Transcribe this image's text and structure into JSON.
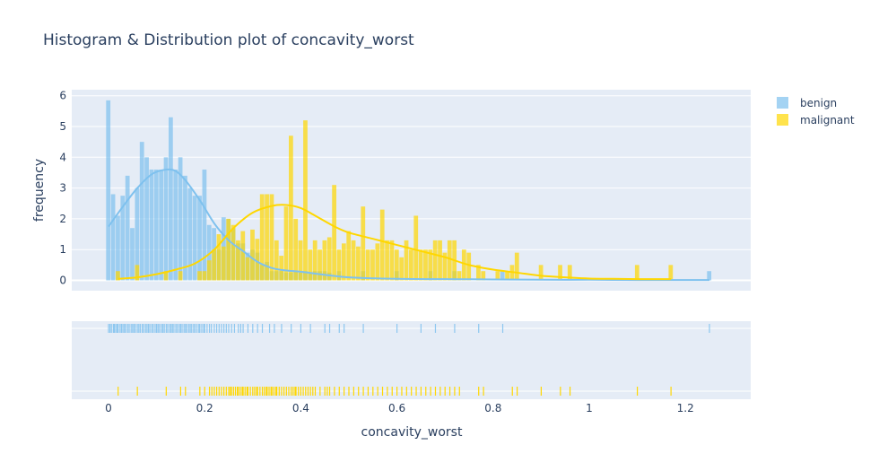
{
  "chart_data": {
    "type": "histogram",
    "title": "Histogram & Distribution plot of concavity_worst",
    "xlabel": "concavity_worst",
    "ylabel": "frequency",
    "xlim": [
      -0.06,
      1.32
    ],
    "ylim": [
      -0.3,
      6.2
    ],
    "x_ticks": [
      "0",
      "0.2",
      "0.4",
      "0.6",
      "0.8",
      "1",
      "1.2"
    ],
    "x_tick_values": [
      0,
      0.2,
      0.4,
      0.6,
      0.8,
      1.0,
      1.2
    ],
    "y_ticks": [
      "0",
      "1",
      "2",
      "3",
      "4",
      "5",
      "6"
    ],
    "y_tick_values": [
      0,
      1,
      2,
      3,
      4,
      5,
      6
    ],
    "bin_width": 0.01,
    "legend_position": "top-right",
    "series": [
      {
        "name": "benign",
        "color": "#7ec1ee",
        "bar_opacity": 0.7,
        "bins": [
          {
            "x": 0.0,
            "y": 5.85
          },
          {
            "x": 0.01,
            "y": 2.8
          },
          {
            "x": 0.02,
            "y": 2.1
          },
          {
            "x": 0.03,
            "y": 2.75
          },
          {
            "x": 0.04,
            "y": 3.4
          },
          {
            "x": 0.05,
            "y": 1.7
          },
          {
            "x": 0.06,
            "y": 3.0
          },
          {
            "x": 0.07,
            "y": 4.5
          },
          {
            "x": 0.08,
            "y": 4.0
          },
          {
            "x": 0.09,
            "y": 3.6
          },
          {
            "x": 0.1,
            "y": 3.6
          },
          {
            "x": 0.11,
            "y": 3.6
          },
          {
            "x": 0.12,
            "y": 4.0
          },
          {
            "x": 0.13,
            "y": 5.3
          },
          {
            "x": 0.14,
            "y": 3.6
          },
          {
            "x": 0.15,
            "y": 4.0
          },
          {
            "x": 0.16,
            "y": 3.4
          },
          {
            "x": 0.17,
            "y": 3.0
          },
          {
            "x": 0.18,
            "y": 2.75
          },
          {
            "x": 0.19,
            "y": 2.75
          },
          {
            "x": 0.2,
            "y": 3.6
          },
          {
            "x": 0.21,
            "y": 1.8
          },
          {
            "x": 0.22,
            "y": 1.7
          },
          {
            "x": 0.23,
            "y": 1.0
          },
          {
            "x": 0.24,
            "y": 2.05
          },
          {
            "x": 0.25,
            "y": 2.0
          },
          {
            "x": 0.26,
            "y": 1.7
          },
          {
            "x": 0.27,
            "y": 1.2
          },
          {
            "x": 0.28,
            "y": 1.2
          },
          {
            "x": 0.29,
            "y": 0.9
          },
          {
            "x": 0.3,
            "y": 1.0
          },
          {
            "x": 0.31,
            "y": 0.9
          },
          {
            "x": 0.32,
            "y": 0.5
          },
          {
            "x": 0.33,
            "y": 0.6
          },
          {
            "x": 0.34,
            "y": 0.3
          },
          {
            "x": 0.35,
            "y": 0.3
          },
          {
            "x": 0.36,
            "y": 0.3
          },
          {
            "x": 0.37,
            "y": 0.25
          },
          {
            "x": 0.38,
            "y": 0.25
          },
          {
            "x": 0.39,
            "y": 0.3
          },
          {
            "x": 0.4,
            "y": 0.25
          },
          {
            "x": 0.41,
            "y": 0.3
          },
          {
            "x": 0.42,
            "y": 0.25
          },
          {
            "x": 0.43,
            "y": 0.3
          },
          {
            "x": 0.44,
            "y": 0.3
          },
          {
            "x": 0.45,
            "y": 0.3
          },
          {
            "x": 0.46,
            "y": 0.25
          },
          {
            "x": 0.48,
            "y": 0.3
          },
          {
            "x": 0.53,
            "y": 0.3
          },
          {
            "x": 0.6,
            "y": 0.3
          },
          {
            "x": 0.67,
            "y": 0.3
          },
          {
            "x": 0.72,
            "y": 0.3
          },
          {
            "x": 0.82,
            "y": 0.3
          },
          {
            "x": 1.25,
            "y": 0.3
          }
        ],
        "kde": {
          "x": [
            0.0,
            0.03,
            0.06,
            0.09,
            0.12,
            0.14,
            0.16,
            0.19,
            0.22,
            0.25,
            0.28,
            0.31,
            0.34,
            0.37,
            0.4,
            0.45,
            0.5,
            0.6,
            0.7,
            0.8,
            0.9,
            1.0,
            1.1,
            1.2,
            1.25
          ],
          "y": [
            1.75,
            2.4,
            3.0,
            3.45,
            3.6,
            3.55,
            3.25,
            2.6,
            1.85,
            1.3,
            0.95,
            0.6,
            0.4,
            0.32,
            0.28,
            0.18,
            0.1,
            0.05,
            0.04,
            0.03,
            0.02,
            0.02,
            0.01,
            0.01,
            0.01
          ]
        },
        "rug": [
          0.0,
          0.003,
          0.006,
          0.01,
          0.012,
          0.015,
          0.018,
          0.02,
          0.024,
          0.027,
          0.03,
          0.033,
          0.036,
          0.04,
          0.043,
          0.047,
          0.05,
          0.053,
          0.056,
          0.06,
          0.063,
          0.066,
          0.07,
          0.073,
          0.077,
          0.08,
          0.083,
          0.086,
          0.09,
          0.093,
          0.097,
          0.1,
          0.103,
          0.106,
          0.11,
          0.113,
          0.116,
          0.12,
          0.123,
          0.127,
          0.13,
          0.133,
          0.136,
          0.14,
          0.143,
          0.147,
          0.15,
          0.153,
          0.157,
          0.16,
          0.163,
          0.167,
          0.17,
          0.173,
          0.177,
          0.18,
          0.184,
          0.188,
          0.19,
          0.194,
          0.198,
          0.2,
          0.205,
          0.21,
          0.214,
          0.22,
          0.225,
          0.23,
          0.235,
          0.24,
          0.245,
          0.25,
          0.256,
          0.262,
          0.27,
          0.275,
          0.28,
          0.29,
          0.3,
          0.31,
          0.32,
          0.335,
          0.345,
          0.36,
          0.38,
          0.4,
          0.42,
          0.45,
          0.46,
          0.48,
          0.49,
          0.53,
          0.6,
          0.65,
          0.68,
          0.72,
          0.77,
          0.82,
          1.25
        ]
      },
      {
        "name": "malignant",
        "color": "#ffd700",
        "bar_opacity": 0.7,
        "bins": [
          {
            "x": 0.02,
            "y": 0.3
          },
          {
            "x": 0.06,
            "y": 0.5
          },
          {
            "x": 0.12,
            "y": 0.3
          },
          {
            "x": 0.15,
            "y": 0.3
          },
          {
            "x": 0.19,
            "y": 0.3
          },
          {
            "x": 0.2,
            "y": 0.3
          },
          {
            "x": 0.21,
            "y": 0.65
          },
          {
            "x": 0.22,
            "y": 1.0
          },
          {
            "x": 0.23,
            "y": 1.5
          },
          {
            "x": 0.24,
            "y": 1.1
          },
          {
            "x": 0.25,
            "y": 2.0
          },
          {
            "x": 0.26,
            "y": 1.8
          },
          {
            "x": 0.27,
            "y": 1.3
          },
          {
            "x": 0.28,
            "y": 1.6
          },
          {
            "x": 0.29,
            "y": 0.75
          },
          {
            "x": 0.3,
            "y": 1.65
          },
          {
            "x": 0.31,
            "y": 1.35
          },
          {
            "x": 0.32,
            "y": 2.8
          },
          {
            "x": 0.33,
            "y": 2.8
          },
          {
            "x": 0.34,
            "y": 2.8
          },
          {
            "x": 0.35,
            "y": 1.3
          },
          {
            "x": 0.36,
            "y": 0.8
          },
          {
            "x": 0.37,
            "y": 2.4
          },
          {
            "x": 0.38,
            "y": 4.7
          },
          {
            "x": 0.39,
            "y": 2.0
          },
          {
            "x": 0.4,
            "y": 1.3
          },
          {
            "x": 0.41,
            "y": 5.2
          },
          {
            "x": 0.42,
            "y": 1.0
          },
          {
            "x": 0.43,
            "y": 1.3
          },
          {
            "x": 0.44,
            "y": 1.0
          },
          {
            "x": 0.45,
            "y": 1.3
          },
          {
            "x": 0.46,
            "y": 1.4
          },
          {
            "x": 0.47,
            "y": 3.1
          },
          {
            "x": 0.48,
            "y": 1.0
          },
          {
            "x": 0.49,
            "y": 1.2
          },
          {
            "x": 0.5,
            "y": 1.6
          },
          {
            "x": 0.51,
            "y": 1.3
          },
          {
            "x": 0.52,
            "y": 1.1
          },
          {
            "x": 0.53,
            "y": 2.4
          },
          {
            "x": 0.54,
            "y": 1.0
          },
          {
            "x": 0.55,
            "y": 1.0
          },
          {
            "x": 0.56,
            "y": 1.2
          },
          {
            "x": 0.57,
            "y": 2.3
          },
          {
            "x": 0.58,
            "y": 1.3
          },
          {
            "x": 0.59,
            "y": 1.3
          },
          {
            "x": 0.6,
            "y": 1.0
          },
          {
            "x": 0.61,
            "y": 0.75
          },
          {
            "x": 0.62,
            "y": 1.3
          },
          {
            "x": 0.63,
            "y": 1.0
          },
          {
            "x": 0.64,
            "y": 2.1
          },
          {
            "x": 0.65,
            "y": 1.0
          },
          {
            "x": 0.66,
            "y": 1.0
          },
          {
            "x": 0.67,
            "y": 1.0
          },
          {
            "x": 0.68,
            "y": 1.3
          },
          {
            "x": 0.69,
            "y": 1.3
          },
          {
            "x": 0.7,
            "y": 0.9
          },
          {
            "x": 0.71,
            "y": 1.3
          },
          {
            "x": 0.72,
            "y": 1.3
          },
          {
            "x": 0.73,
            "y": 0.3
          },
          {
            "x": 0.74,
            "y": 1.0
          },
          {
            "x": 0.75,
            "y": 0.9
          },
          {
            "x": 0.77,
            "y": 0.5
          },
          {
            "x": 0.78,
            "y": 0.3
          },
          {
            "x": 0.81,
            "y": 0.3
          },
          {
            "x": 0.83,
            "y": 0.3
          },
          {
            "x": 0.84,
            "y": 0.5
          },
          {
            "x": 0.85,
            "y": 0.9
          },
          {
            "x": 0.9,
            "y": 0.5
          },
          {
            "x": 0.94,
            "y": 0.5
          },
          {
            "x": 0.96,
            "y": 0.5
          },
          {
            "x": 1.1,
            "y": 0.5
          },
          {
            "x": 1.17,
            "y": 0.5
          }
        ],
        "kde": {
          "x": [
            0.02,
            0.06,
            0.1,
            0.14,
            0.18,
            0.22,
            0.26,
            0.3,
            0.34,
            0.37,
            0.4,
            0.43,
            0.47,
            0.5,
            0.55,
            0.6,
            0.65,
            0.7,
            0.75,
            0.8,
            0.85,
            0.9,
            0.95,
            1.0,
            1.05,
            1.1,
            1.17
          ],
          "y": [
            0.05,
            0.1,
            0.2,
            0.35,
            0.55,
            1.0,
            1.7,
            2.2,
            2.42,
            2.45,
            2.35,
            2.1,
            1.75,
            1.55,
            1.35,
            1.15,
            0.95,
            0.75,
            0.5,
            0.35,
            0.25,
            0.15,
            0.1,
            0.06,
            0.05,
            0.04,
            0.04
          ]
        },
        "rug": [
          0.02,
          0.06,
          0.12,
          0.15,
          0.16,
          0.19,
          0.2,
          0.21,
          0.215,
          0.22,
          0.225,
          0.23,
          0.235,
          0.24,
          0.245,
          0.25,
          0.253,
          0.256,
          0.26,
          0.264,
          0.268,
          0.27,
          0.274,
          0.278,
          0.28,
          0.284,
          0.288,
          0.29,
          0.295,
          0.3,
          0.304,
          0.308,
          0.31,
          0.315,
          0.32,
          0.324,
          0.328,
          0.33,
          0.334,
          0.338,
          0.34,
          0.344,
          0.348,
          0.35,
          0.355,
          0.36,
          0.365,
          0.37,
          0.375,
          0.38,
          0.384,
          0.388,
          0.39,
          0.395,
          0.4,
          0.405,
          0.41,
          0.415,
          0.42,
          0.425,
          0.43,
          0.44,
          0.45,
          0.455,
          0.46,
          0.47,
          0.48,
          0.49,
          0.5,
          0.51,
          0.52,
          0.53,
          0.54,
          0.55,
          0.56,
          0.57,
          0.58,
          0.59,
          0.6,
          0.61,
          0.62,
          0.63,
          0.64,
          0.65,
          0.66,
          0.67,
          0.68,
          0.69,
          0.7,
          0.71,
          0.72,
          0.73,
          0.77,
          0.78,
          0.84,
          0.85,
          0.9,
          0.94,
          0.96,
          1.1,
          1.17
        ]
      }
    ]
  }
}
